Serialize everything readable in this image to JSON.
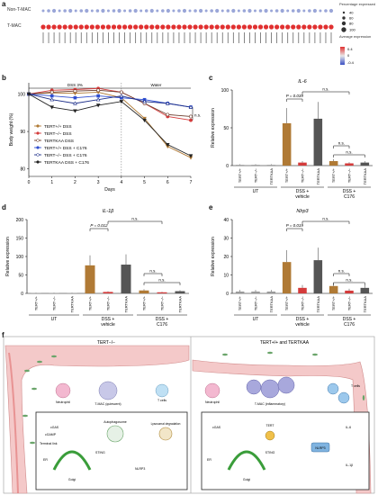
{
  "panels": {
    "a": "a",
    "b": "b",
    "c": "c",
    "d": "d",
    "e": "e",
    "f": "f"
  },
  "panel_a": {
    "row_labels": [
      "Non-T-MAC",
      "T-MAC"
    ],
    "legend": {
      "pct_title": "Percentage\nexpressed",
      "pct_values": [
        "40",
        "60",
        "80",
        "100"
      ],
      "avg_title": "Average\nexpression",
      "avg_values": [
        "0.4",
        "0",
        "-0.4"
      ]
    },
    "gene_count": 54
  },
  "chart_data": [
    {
      "type": "line",
      "panel": "b",
      "title": "",
      "xlabel": "Days",
      "ylabel": "Body weight (%)",
      "x": [
        0,
        1,
        2,
        3,
        4,
        5,
        6,
        7
      ],
      "xlim": [
        0,
        7
      ],
      "ylim": [
        78,
        103
      ],
      "yticks": [
        80,
        90,
        100
      ],
      "annotations": [
        "DSS 3%",
        "Water",
        "n.s."
      ],
      "series": [
        {
          "name": "TERT+/+ DSS",
          "color": "#b07a35",
          "marker": "triangle-down",
          "values": [
            100,
            100.3,
            100.2,
            100.5,
            99,
            93.5,
            86,
            83
          ]
        },
        {
          "name": "TERT−/− DSS",
          "color": "#d43b3b",
          "marker": "circle",
          "values": [
            100,
            101,
            101.2,
            101.5,
            100.5,
            97.5,
            94,
            93
          ]
        },
        {
          "name": "TERTKAA DSS",
          "color": "#6b3a2a",
          "marker": "circle-open",
          "values": [
            100,
            100.5,
            100.8,
            101,
            100.5,
            97.5,
            94.5,
            94
          ]
        },
        {
          "name": "TERT+/+ DSS + C176",
          "color": "#2f4ed0",
          "marker": "square",
          "values": [
            100,
            99.5,
            99,
            99.5,
            99,
            98.5,
            97.5,
            96.5
          ]
        },
        {
          "name": "TERT−/− DSS + C176",
          "color": "#1d2f8a",
          "marker": "triangle-up-open",
          "values": [
            100,
            98.5,
            97.5,
            98.5,
            99.5,
            98,
            97.5,
            96.5
          ]
        },
        {
          "name": "TERTKAA DSS + C176",
          "color": "#222222",
          "marker": "triangle-down",
          "values": [
            100,
            96.5,
            95.5,
            97,
            98,
            93,
            86.5,
            83.5
          ]
        }
      ]
    },
    {
      "type": "bar",
      "panel": "c",
      "title": "IL-6",
      "ylabel": "Relative expression",
      "ylim": [
        0,
        100
      ],
      "yticks": [
        0,
        50,
        100
      ],
      "categories": [
        "TERT+/+",
        "TERT−/−",
        "TERTKAA",
        "TERT+/+",
        "TERT−/−",
        "TERTKAA",
        "TERT+/+",
        "TERT−/−",
        "TERTKAA"
      ],
      "groups": [
        "UT",
        "DSS + vehicle",
        "DSS + C176"
      ],
      "values": [
        1,
        1,
        1,
        56,
        4,
        62,
        6,
        3,
        4
      ],
      "annotations": [
        "P = 0.039",
        "n.s.",
        "n.s.",
        "n.s."
      ]
    },
    {
      "type": "bar",
      "panel": "d",
      "title": "IL-1β",
      "ylabel": "Relative expression",
      "ylim": [
        0,
        200
      ],
      "yticks": [
        0,
        50,
        100,
        150,
        200
      ],
      "categories": [
        "TERT+/+",
        "TERT−/−",
        "TERTKAA",
        "TERT+/+",
        "TERT−/−",
        "TERTKAA",
        "TERT+/+",
        "TERT−/−",
        "TERTKAA"
      ],
      "groups": [
        "UT",
        "DSS + vehicle",
        "DSS + C176"
      ],
      "values": [
        1,
        1,
        1,
        76,
        4,
        78,
        8,
        3,
        6
      ],
      "annotations": [
        "P = 0.012",
        "n.s.",
        "n.s.",
        "n.s."
      ]
    },
    {
      "type": "bar",
      "panel": "e",
      "title": "Nlrp3",
      "ylabel": "Relative expression",
      "ylim": [
        0,
        40
      ],
      "yticks": [
        0,
        10,
        20,
        30,
        40
      ],
      "categories": [
        "TERT+/+",
        "TERT−/−",
        "TERTKAA",
        "TERT+/+",
        "TERT−/−",
        "TERTKAA",
        "TERT+/+",
        "TERT−/−",
        "TERTKAA"
      ],
      "groups": [
        "UT",
        "DSS + vehicle",
        "DSS + C176"
      ],
      "values": [
        1,
        1,
        1,
        17,
        3,
        18,
        4,
        1.5,
        3
      ],
      "annotations": [
        "P = 0.019",
        "n.s.",
        "n.s.",
        "n.s."
      ]
    }
  ],
  "panel_f": {
    "left_title": "TERT−/−",
    "right_title": "TERT+/+ and TERTKAA",
    "left_labels": [
      "Neutrophil",
      "T-MAC (quiescent)",
      "T cells",
      "Autophagosome",
      "Lysosomal degradation",
      "STING",
      "Golgi",
      "ER",
      "cGAS",
      "cGAMP",
      "Terminal link",
      "NLRP3"
    ],
    "right_labels": [
      "Neutrophil",
      "T-MAC (inflammatory)",
      "T cells",
      "TERT",
      "STING",
      "Golgi",
      "ER",
      "cGAS",
      "IL-6",
      "IL-1β",
      "NLRP3"
    ]
  }
}
